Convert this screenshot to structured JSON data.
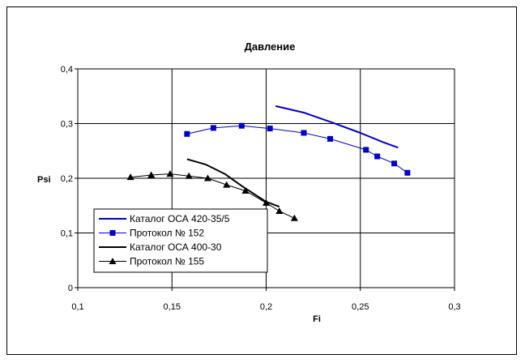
{
  "chart_data": {
    "type": "line",
    "title": "Давление",
    "xlabel": "Fi",
    "ylabel": "Psi",
    "xlim": [
      0.1,
      0.3
    ],
    "ylim": [
      0,
      0.4
    ],
    "x_ticks": [
      "0,1",
      "0,15",
      "0,2",
      "0,25",
      "0,3"
    ],
    "y_ticks": [
      "0",
      "0,1",
      "0,2",
      "0,3",
      "0,4"
    ],
    "grid": true,
    "legend_position": "bottom-left",
    "series": [
      {
        "name": "Каталог ОСА 420-35/5",
        "color": "#0000cc",
        "marker": "none",
        "line_width": 2,
        "x": [
          0.205,
          0.22,
          0.235,
          0.25,
          0.262,
          0.27
        ],
        "y": [
          0.332,
          0.32,
          0.302,
          0.283,
          0.266,
          0.256
        ]
      },
      {
        "name": "Протокол № 152",
        "color": "#0000cc",
        "marker": "square",
        "line_width": 1,
        "x": [
          0.158,
          0.172,
          0.187,
          0.202,
          0.22,
          0.234,
          0.253,
          0.259,
          0.268,
          0.275
        ],
        "y": [
          0.281,
          0.292,
          0.296,
          0.291,
          0.283,
          0.272,
          0.252,
          0.24,
          0.227,
          0.21
        ]
      },
      {
        "name": "Каталог ОСА 400-30",
        "color": "#000000",
        "marker": "none",
        "line_width": 2,
        "x": [
          0.158,
          0.168,
          0.178,
          0.187,
          0.195,
          0.2,
          0.207
        ],
        "y": [
          0.235,
          0.225,
          0.208,
          0.186,
          0.168,
          0.157,
          0.148
        ]
      },
      {
        "name": "Протокол № 155",
        "color": "#000000",
        "marker": "triangle",
        "line_width": 1,
        "x": [
          0.128,
          0.139,
          0.149,
          0.159,
          0.169,
          0.179,
          0.189,
          0.2,
          0.207,
          0.215
        ],
        "y": [
          0.202,
          0.206,
          0.208,
          0.204,
          0.2,
          0.188,
          0.177,
          0.155,
          0.14,
          0.127
        ]
      }
    ]
  }
}
